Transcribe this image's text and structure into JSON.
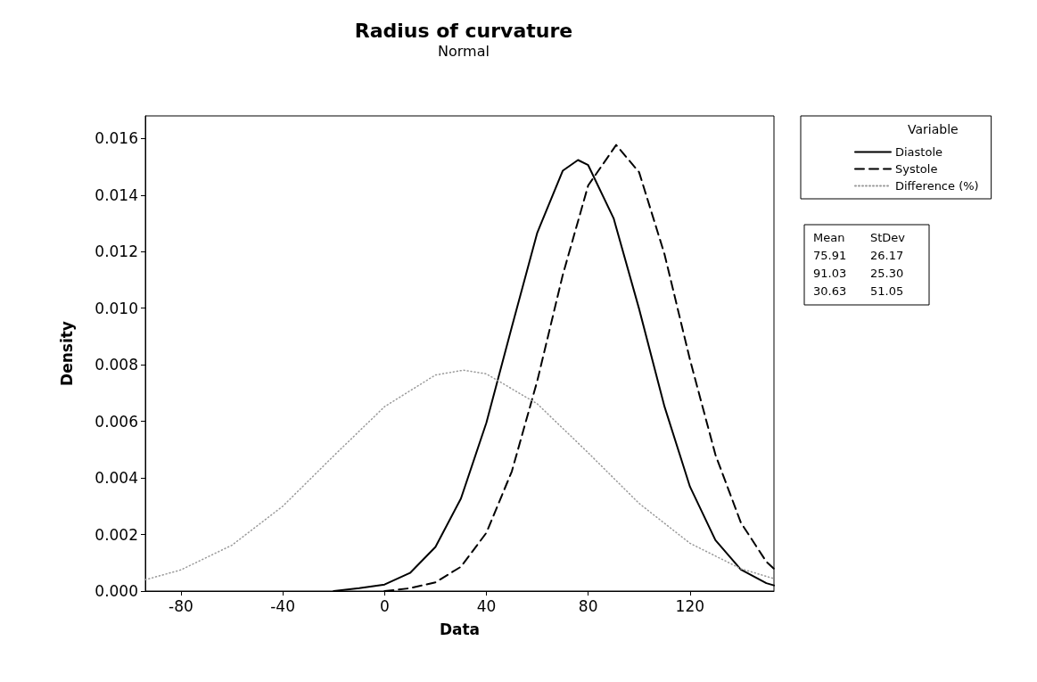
{
  "chart_data": {
    "type": "line",
    "title": "Radius of curvature",
    "subtitle": "Normal",
    "xlabel": "Data",
    "ylabel": "Density",
    "legend_title": "Variable",
    "xlim": [
      -94,
      153
    ],
    "xticks": [
      -80,
      -40,
      0,
      40,
      80,
      120
    ],
    "ylim": [
      0,
      0.0168
    ],
    "yticks": [
      {
        "value": 0,
        "label": "0.000"
      },
      {
        "value": 0.002,
        "label": "0.002"
      },
      {
        "value": 0.004,
        "label": "0.004"
      },
      {
        "value": 0.006,
        "label": "0.006"
      },
      {
        "value": 0.008,
        "label": "0.008"
      },
      {
        "value": 0.01,
        "label": "0.010"
      },
      {
        "value": 0.012,
        "label": "0.012"
      },
      {
        "value": 0.014,
        "label": "0.014"
      },
      {
        "value": 0.016,
        "label": "0.016"
      }
    ],
    "grid": false,
    "legend": "right",
    "marker": "none",
    "series": [
      {
        "name": "Diastole",
        "color": "#000000",
        "line_style": "solid",
        "x": [
          -20,
          -10,
          0,
          10,
          20,
          30,
          40,
          50,
          60,
          70,
          76,
          80,
          90,
          100,
          110,
          120,
          130,
          140,
          150,
          153
        ],
        "values": [
          0,
          0.0001,
          0.00023,
          0.00064,
          0.00156,
          0.00327,
          0.00595,
          0.00934,
          0.01267,
          0.01486,
          0.01524,
          0.01506,
          0.01318,
          0.00998,
          0.00652,
          0.00369,
          0.0018,
          0.00076,
          0.00028,
          0.0002
        ]
      },
      {
        "name": "Systole",
        "color": "#000000",
        "line_style": "dashed",
        "x": [
          0,
          10,
          20,
          30,
          40,
          50,
          60,
          70,
          80,
          91,
          100,
          110,
          120,
          130,
          140,
          150,
          153
        ],
        "values": [
          0,
          0.0001,
          0.00031,
          0.00086,
          0.00206,
          0.00423,
          0.00743,
          0.01117,
          0.01434,
          0.01577,
          0.01481,
          0.01191,
          0.00818,
          0.00482,
          0.00242,
          0.00104,
          0.00079
        ]
      },
      {
        "name": "Difference (%)",
        "color": "#999999",
        "line_style": "dotted",
        "x": [
          -94,
          -80,
          -60,
          -40,
          -20,
          0,
          20,
          31,
          40,
          60,
          80,
          100,
          120,
          140,
          153
        ],
        "values": [
          0.0004,
          0.00075,
          0.00162,
          0.003,
          0.00478,
          0.00652,
          0.00764,
          0.00781,
          0.00768,
          0.00662,
          0.00489,
          0.0031,
          0.00169,
          0.00079,
          0.00044
        ]
      }
    ],
    "annotations": [
      "Mean",
      "StDev",
      "75.91",
      "26.17",
      "91.03",
      "25.30",
      "30.63",
      "51.05"
    ]
  }
}
